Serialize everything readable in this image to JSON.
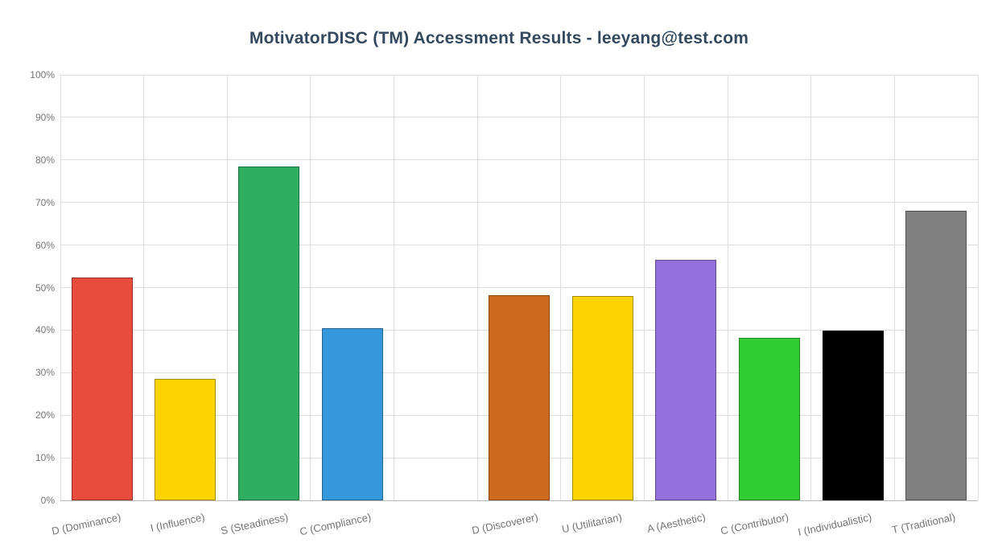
{
  "title": "MotivatorDISC (TM) Accessment Results - leeyang@test.com",
  "chart_data": {
    "type": "bar",
    "title": "MotivatorDISC (TM) Accessment Results - leeyang@test.com",
    "xlabel": "",
    "ylabel": "",
    "ylim": [
      0,
      100
    ],
    "grid": true,
    "legend": "none",
    "y_ticks": [
      "0%",
      "10%",
      "20%",
      "30%",
      "40%",
      "50%",
      "60%",
      "70%",
      "80%",
      "90%",
      "100%"
    ],
    "categories": [
      "D (Dominance)",
      "I (Influence)",
      "S (Steadiness)",
      "C (Compliance)",
      "",
      "D (Discoverer)",
      "U (Utilitarian)",
      "A (Aesthetic)",
      "C (Contributor)",
      "I (Individualistic)",
      "T (Traditional)"
    ],
    "values": [
      52.3,
      28.5,
      78.4,
      40.4,
      null,
      48.2,
      48.1,
      56.5,
      38.1,
      39.8,
      68.1
    ],
    "colors": [
      "#e74c3c",
      "#fdd400",
      "#2eae60",
      "#3498db",
      null,
      "#cd6a1e",
      "#fdd400",
      "#9370db",
      "#32cd32",
      "#000000",
      "#808080"
    ]
  }
}
